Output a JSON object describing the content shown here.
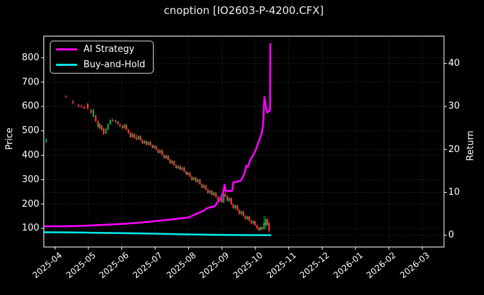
{
  "title": "cnoption [IO2603-P-4200.CFX]",
  "colors": {
    "background": "#000000",
    "text": "#ffffff",
    "grid": "#3c3c3c",
    "spine": "#ffffff",
    "up": "#0ca750",
    "down": "#f23636",
    "ai_strategy": "#ff00ff",
    "buy_and_hold": "#00e8e8"
  },
  "legend": {
    "items": [
      {
        "label": "AI Strategy",
        "color_key": "ai_strategy"
      },
      {
        "label": "Buy-and-Hold",
        "color_key": "buy_and_hold"
      }
    ]
  },
  "chart_data": {
    "type": "candlestick+line",
    "title": "cnoption [IO2603-P-4200.CFX]",
    "grid": true,
    "legend_position": "upper-left",
    "left_axis": {
      "label": "Price",
      "ticks": [
        100,
        200,
        300,
        400,
        500,
        600,
        700,
        800
      ],
      "range": [
        24,
        887
      ]
    },
    "right_axis": {
      "label": "Return",
      "ticks": [
        0,
        10,
        20,
        30,
        40
      ],
      "range": [
        -2.8,
        46.3
      ]
    },
    "x_axis": {
      "tick_labels": [
        "2025-04",
        "2025-05",
        "2025-06",
        "2025-07",
        "2025-08",
        "2025-09",
        "2025-10",
        "2025-11",
        "2025-12",
        "2026-01",
        "2026-02",
        "2026-03"
      ],
      "tick_positions_months": [
        0,
        1,
        2,
        3,
        4,
        5,
        6,
        7,
        8,
        9,
        10,
        11
      ],
      "range_months": [
        -0.35,
        11.65
      ]
    },
    "candles_note": "columns: [month_offset_from_2025-04, open, high, low, close], price axis",
    "candles": [
      [
        -0.26,
        455,
        472,
        448,
        463
      ],
      [
        0.33,
        641,
        647,
        634,
        638
      ],
      [
        0.54,
        620,
        628,
        609,
        613
      ],
      [
        0.71,
        606,
        611,
        597,
        600
      ],
      [
        0.79,
        602,
        607,
        595,
        598
      ],
      [
        0.875,
        598,
        603,
        589,
        592
      ],
      [
        0.98,
        611,
        615,
        588,
        591
      ],
      [
        1.08,
        585,
        592,
        569,
        574
      ],
      [
        1.15,
        558,
        591,
        554,
        587
      ],
      [
        1.22,
        563,
        568,
        536,
        539
      ],
      [
        1.29,
        539,
        544,
        512,
        517
      ],
      [
        1.34,
        510,
        533,
        506,
        529
      ],
      [
        1.4,
        522,
        527,
        500,
        504
      ],
      [
        1.46,
        510,
        514,
        484,
        486
      ],
      [
        1.53,
        490,
        512,
        487,
        508
      ],
      [
        1.59,
        505,
        531,
        503,
        529
      ],
      [
        1.66,
        528,
        549,
        524,
        545
      ],
      [
        1.73,
        544,
        552,
        536,
        540
      ],
      [
        1.82,
        536,
        547,
        531,
        543
      ],
      [
        1.89,
        538,
        542,
        524,
        527
      ],
      [
        1.95,
        526,
        531,
        515,
        519
      ],
      [
        2.02,
        519,
        524,
        507,
        511
      ],
      [
        2.08,
        512,
        529,
        509,
        526
      ],
      [
        2.14,
        524,
        528,
        502,
        505
      ],
      [
        2.2,
        505,
        509,
        488,
        491
      ],
      [
        2.26,
        491,
        500,
        470,
        474
      ],
      [
        2.32,
        474,
        492,
        471,
        489
      ],
      [
        2.38,
        487,
        491,
        468,
        471
      ],
      [
        2.44,
        471,
        486,
        461,
        465
      ],
      [
        2.5,
        466,
        482,
        463,
        479
      ],
      [
        2.56,
        478,
        482,
        458,
        461
      ],
      [
        2.62,
        461,
        466,
        446,
        449
      ],
      [
        2.68,
        449,
        463,
        444,
        459
      ],
      [
        2.74,
        458,
        462,
        440,
        443
      ],
      [
        2.8,
        443,
        458,
        441,
        455
      ],
      [
        2.86,
        454,
        458,
        437,
        440
      ],
      [
        2.92,
        440,
        445,
        428,
        431
      ],
      [
        2.97,
        431,
        443,
        427,
        438
      ],
      [
        3.03,
        437,
        441,
        420,
        423
      ],
      [
        3.09,
        423,
        428,
        407,
        410
      ],
      [
        3.15,
        410,
        424,
        406,
        421
      ],
      [
        3.21,
        420,
        425,
        398,
        401
      ],
      [
        3.27,
        401,
        405,
        385,
        388
      ],
      [
        3.33,
        388,
        403,
        384,
        399
      ],
      [
        3.39,
        398,
        402,
        378,
        381
      ],
      [
        3.45,
        381,
        386,
        364,
        367
      ],
      [
        3.51,
        367,
        381,
        362,
        377
      ],
      [
        3.57,
        376,
        380,
        356,
        359
      ],
      [
        3.63,
        359,
        364,
        344,
        347
      ],
      [
        3.69,
        347,
        360,
        342,
        356
      ],
      [
        3.75,
        355,
        359,
        338,
        341
      ],
      [
        3.81,
        341,
        354,
        336,
        350
      ],
      [
        3.87,
        350,
        354,
        330,
        333
      ],
      [
        3.93,
        333,
        338,
        318,
        321
      ],
      [
        3.98,
        321,
        333,
        316,
        329
      ],
      [
        4.04,
        328,
        332,
        310,
        313
      ],
      [
        4.1,
        313,
        318,
        296,
        299
      ],
      [
        4.16,
        299,
        313,
        294,
        309
      ],
      [
        4.22,
        308,
        312,
        288,
        291
      ],
      [
        4.28,
        291,
        305,
        286,
        301
      ],
      [
        4.34,
        300,
        304,
        278,
        281
      ],
      [
        4.4,
        281,
        286,
        264,
        267
      ],
      [
        4.46,
        267,
        281,
        262,
        277
      ],
      [
        4.52,
        276,
        280,
        256,
        259
      ],
      [
        4.58,
        259,
        264,
        242,
        245
      ],
      [
        4.64,
        245,
        259,
        240,
        255
      ],
      [
        4.7,
        254,
        258,
        234,
        237
      ],
      [
        4.76,
        237,
        251,
        232,
        247
      ],
      [
        4.82,
        246,
        250,
        226,
        229
      ],
      [
        4.88,
        229,
        234,
        214,
        217
      ],
      [
        4.94,
        217,
        230,
        212,
        226
      ],
      [
        4.99,
        225,
        229,
        204,
        207
      ],
      [
        5.05,
        207,
        248,
        203,
        240
      ],
      [
        5.1,
        240,
        256,
        228,
        232
      ],
      [
        5.16,
        232,
        237,
        210,
        213
      ],
      [
        5.22,
        213,
        228,
        208,
        224
      ],
      [
        5.28,
        224,
        228,
        196,
        199
      ],
      [
        5.34,
        199,
        204,
        180,
        183
      ],
      [
        5.4,
        183,
        198,
        178,
        194
      ],
      [
        5.46,
        194,
        198,
        172,
        175
      ],
      [
        5.52,
        175,
        180,
        156,
        159
      ],
      [
        5.58,
        159,
        174,
        154,
        170
      ],
      [
        5.64,
        170,
        174,
        148,
        151
      ],
      [
        5.7,
        151,
        156,
        136,
        139
      ],
      [
        5.76,
        139,
        153,
        134,
        149
      ],
      [
        5.82,
        149,
        153,
        128,
        131
      ],
      [
        5.88,
        131,
        136,
        118,
        121
      ],
      [
        5.94,
        121,
        133,
        116,
        129
      ],
      [
        5.99,
        129,
        133,
        110,
        113
      ],
      [
        6.05,
        113,
        117,
        98,
        101
      ],
      [
        6.1,
        101,
        106,
        90,
        93
      ],
      [
        6.15,
        93,
        108,
        90,
        105
      ],
      [
        6.2,
        105,
        109,
        94,
        97
      ],
      [
        6.26,
        97,
        152,
        94,
        124
      ],
      [
        6.31,
        112,
        150,
        98,
        138
      ],
      [
        6.36,
        138,
        142,
        110,
        114
      ],
      [
        6.41,
        123,
        127,
        83,
        90
      ]
    ],
    "series_note": "points: [month_offset_from_2025-04, return], right axis",
    "series": [
      {
        "name": "AI Strategy",
        "axis": "right",
        "color_key": "ai_strategy",
        "points": [
          [
            -0.33,
            2.1
          ],
          [
            0.3,
            2.1
          ],
          [
            0.6,
            2.15
          ],
          [
            1.0,
            2.25
          ],
          [
            1.5,
            2.45
          ],
          [
            2.0,
            2.65
          ],
          [
            2.5,
            2.9
          ],
          [
            3.0,
            3.3
          ],
          [
            3.4,
            3.6
          ],
          [
            3.7,
            3.9
          ],
          [
            4.0,
            4.15
          ],
          [
            4.15,
            4.7
          ],
          [
            4.3,
            5.2
          ],
          [
            4.45,
            5.7
          ],
          [
            4.55,
            6.3
          ],
          [
            4.65,
            6.55
          ],
          [
            4.78,
            6.7
          ],
          [
            4.88,
            7.8
          ],
          [
            4.97,
            8.6
          ],
          [
            5.02,
            9.8
          ],
          [
            5.05,
            10.3
          ],
          [
            5.08,
            11.8
          ],
          [
            5.11,
            10.4
          ],
          [
            5.2,
            10.3
          ],
          [
            5.31,
            10.4
          ],
          [
            5.34,
            12.3
          ],
          [
            5.45,
            12.5
          ],
          [
            5.56,
            12.7
          ],
          [
            5.63,
            13.6
          ],
          [
            5.7,
            15.1
          ],
          [
            5.73,
            16.2
          ],
          [
            5.77,
            15.9
          ],
          [
            5.85,
            17.6
          ],
          [
            5.95,
            18.9
          ],
          [
            6.02,
            20.0
          ],
          [
            6.08,
            21.4
          ],
          [
            6.14,
            22.6
          ],
          [
            6.2,
            24.0
          ],
          [
            6.24,
            26.3
          ],
          [
            6.27,
            32.2
          ],
          [
            6.31,
            30.2
          ],
          [
            6.35,
            28.6
          ],
          [
            6.42,
            29.0
          ],
          [
            6.44,
            29.0
          ],
          [
            6.45,
            44.6
          ]
        ]
      },
      {
        "name": "Buy-and-Hold",
        "axis": "right",
        "color_key": "buy_and_hold",
        "points": [
          [
            -0.33,
            0.72
          ],
          [
            0.5,
            0.67
          ],
          [
            1.0,
            0.62
          ],
          [
            1.5,
            0.56
          ],
          [
            2.0,
            0.5
          ],
          [
            2.5,
            0.44
          ],
          [
            3.0,
            0.37
          ],
          [
            3.5,
            0.3
          ],
          [
            4.0,
            0.22
          ],
          [
            4.5,
            0.15
          ],
          [
            5.0,
            0.1
          ],
          [
            5.5,
            0.06
          ],
          [
            6.0,
            0.04
          ],
          [
            6.45,
            0.03
          ]
        ]
      }
    ]
  }
}
